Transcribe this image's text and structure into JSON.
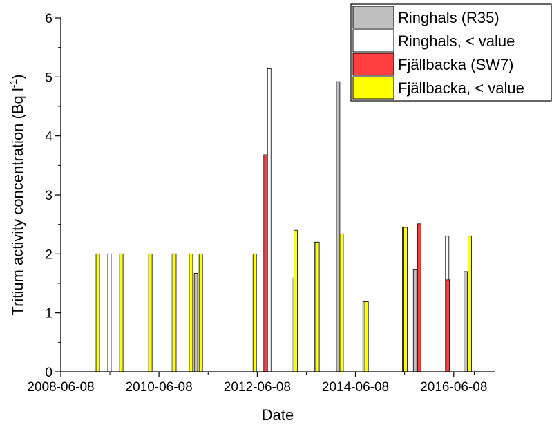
{
  "chart_data": {
    "type": "bar",
    "xlabel": "Date",
    "ylabel": "Tritium activity concentration (Bq l",
    "ylabel_sup": "-1",
    "ylabel_end": ")",
    "ylim": [
      0,
      6
    ],
    "y_ticks": [
      0,
      1,
      2,
      3,
      4,
      5,
      6
    ],
    "xlim": [
      "2008-06-08",
      "2017-04-08"
    ],
    "x_ticks": [
      "2008-06-08",
      "2010-06-08",
      "2012-06-08",
      "2014-06-08",
      "2016-06-08"
    ],
    "legend_position": "top-right",
    "series": [
      {
        "name": "Ringhals (R35)",
        "color": "#c0c0c0",
        "points": [
          {
            "date": "2011-03-10",
            "value": 1.67
          },
          {
            "date": "2013-03-05",
            "value": 1.59
          },
          {
            "date": "2013-08-20",
            "value": 2.2
          },
          {
            "date": "2014-01-30",
            "value": 4.92
          },
          {
            "date": "2014-08-15",
            "value": 1.19
          },
          {
            "date": "2015-08-25",
            "value": 1.74
          },
          {
            "date": "2016-09-05",
            "value": 1.7
          }
        ]
      },
      {
        "name": "Ringhals, < value",
        "color": "#ffffff",
        "points": [
          {
            "date": "2009-06-05",
            "value": 2.0
          },
          {
            "date": "2010-09-20",
            "value": 2.0
          },
          {
            "date": "2012-09-05",
            "value": 5.14
          },
          {
            "date": "2015-06-05",
            "value": 2.45
          },
          {
            "date": "2016-04-20",
            "value": 2.3
          }
        ]
      },
      {
        "name": "Fjällbacka (SW7)",
        "color": "#ff3f3f",
        "points": [
          {
            "date": "2012-08-08",
            "value": 3.68
          },
          {
            "date": "2015-09-25",
            "value": 2.51
          },
          {
            "date": "2016-04-25",
            "value": 1.56
          }
        ]
      },
      {
        "name": "Fjällbacka, < value",
        "color": "#ffff00",
        "points": [
          {
            "date": "2009-03-10",
            "value": 2.0
          },
          {
            "date": "2009-09-01",
            "value": 2.0
          },
          {
            "date": "2010-04-05",
            "value": 2.0
          },
          {
            "date": "2010-10-01",
            "value": 2.0
          },
          {
            "date": "2011-02-01",
            "value": 2.0
          },
          {
            "date": "2011-04-15",
            "value": 2.0
          },
          {
            "date": "2012-05-20",
            "value": 2.0
          },
          {
            "date": "2013-03-20",
            "value": 2.4
          },
          {
            "date": "2013-08-30",
            "value": 2.2
          },
          {
            "date": "2014-02-25",
            "value": 2.34
          },
          {
            "date": "2014-08-30",
            "value": 1.19
          },
          {
            "date": "2015-06-15",
            "value": 2.45
          },
          {
            "date": "2016-10-05",
            "value": 2.3
          }
        ]
      }
    ]
  }
}
